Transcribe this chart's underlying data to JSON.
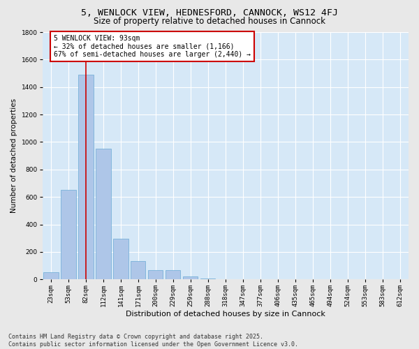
{
  "title": "5, WENLOCK VIEW, HEDNESFORD, CANNOCK, WS12 4FJ",
  "subtitle": "Size of property relative to detached houses in Cannock",
  "xlabel": "Distribution of detached houses by size in Cannock",
  "ylabel": "Number of detached properties",
  "categories": [
    "23sqm",
    "53sqm",
    "82sqm",
    "112sqm",
    "141sqm",
    "171sqm",
    "200sqm",
    "229sqm",
    "259sqm",
    "288sqm",
    "318sqm",
    "347sqm",
    "377sqm",
    "406sqm",
    "435sqm",
    "465sqm",
    "494sqm",
    "524sqm",
    "553sqm",
    "583sqm",
    "612sqm"
  ],
  "values": [
    50,
    650,
    1490,
    950,
    295,
    135,
    68,
    68,
    20,
    5,
    2,
    0,
    0,
    0,
    0,
    0,
    0,
    0,
    0,
    0,
    0
  ],
  "bar_color": "#aec6e8",
  "bar_edge_color": "#6aaad4",
  "vline_x_index": 2,
  "vline_color": "#cc0000",
  "annotation_text": "5 WENLOCK VIEW: 93sqm\n← 32% of detached houses are smaller (1,166)\n67% of semi-detached houses are larger (2,440) →",
  "annotation_box_color": "#ffffff",
  "annotation_box_edge_color": "#cc0000",
  "ylim": [
    0,
    1800
  ],
  "yticks": [
    0,
    200,
    400,
    600,
    800,
    1000,
    1200,
    1400,
    1600,
    1800
  ],
  "plot_bg_color": "#d6e8f7",
  "fig_bg_color": "#e8e8e8",
  "footer_line1": "Contains HM Land Registry data © Crown copyright and database right 2025.",
  "footer_line2": "Contains public sector information licensed under the Open Government Licence v3.0.",
  "title_fontsize": 9.5,
  "subtitle_fontsize": 8.5,
  "xlabel_fontsize": 8,
  "ylabel_fontsize": 7.5,
  "tick_fontsize": 6.5,
  "annotation_fontsize": 7,
  "footer_fontsize": 6
}
